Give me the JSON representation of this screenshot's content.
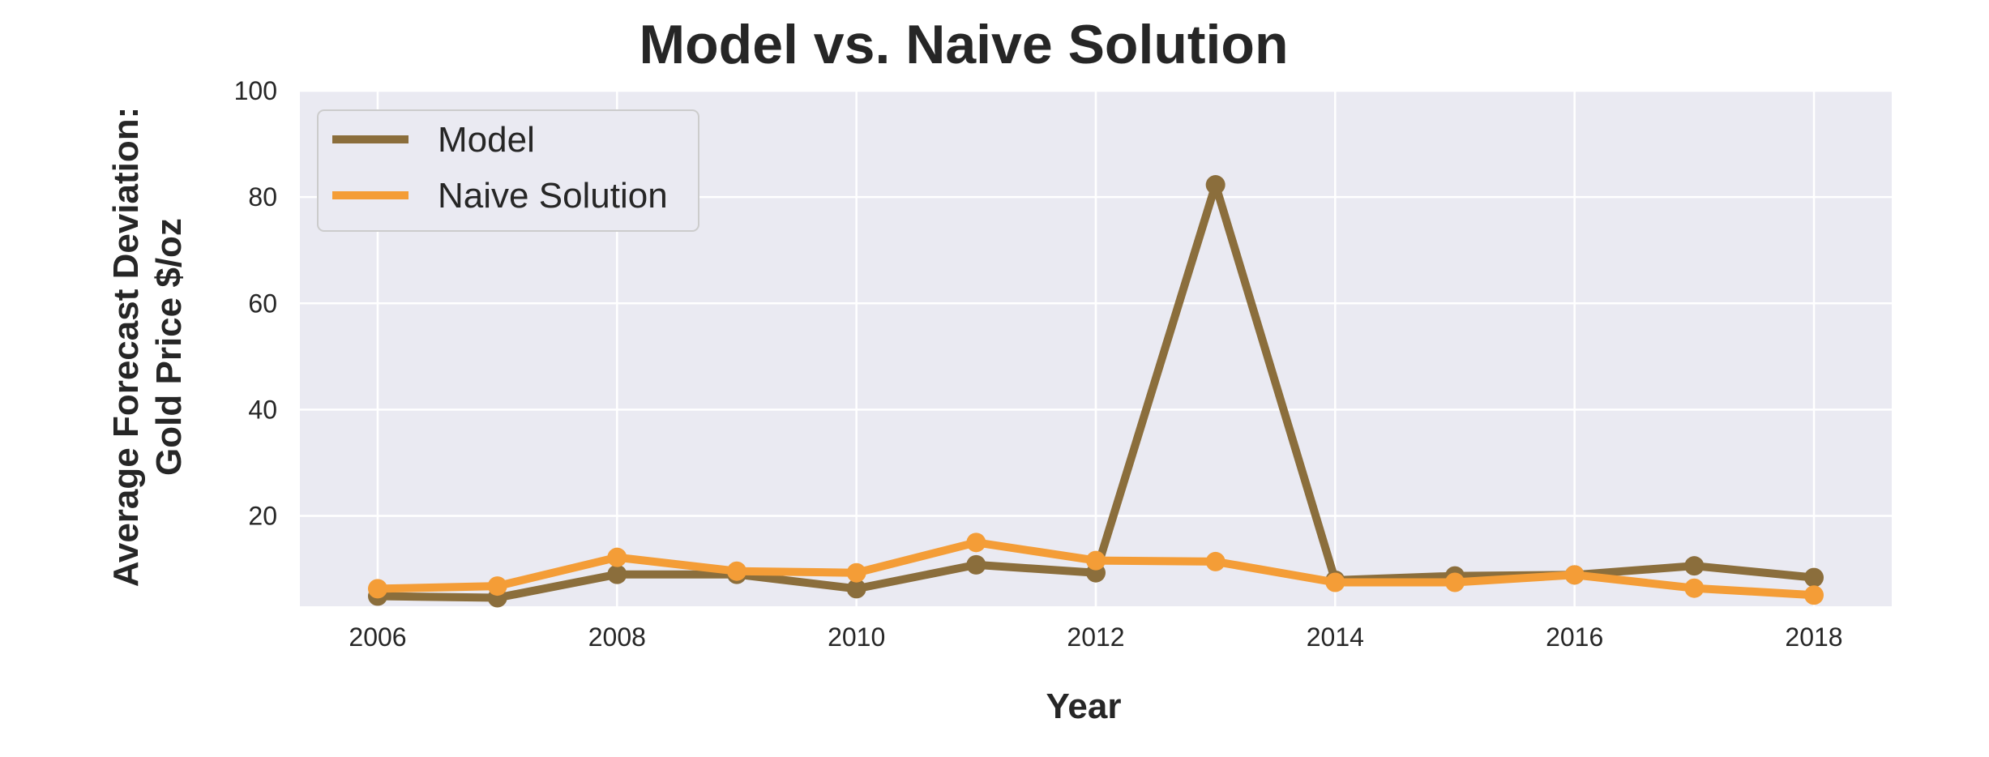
{
  "chart_data": {
    "type": "line",
    "title": "Model vs. Naive Solution",
    "xlabel": "Year",
    "ylabel_lines": [
      "Average Forecast Deviation:",
      "Gold Price $/oz"
    ],
    "x": [
      2006,
      2007,
      2008,
      2009,
      2010,
      2011,
      2012,
      2013,
      2014,
      2015,
      2016,
      2017,
      2018
    ],
    "xlim": [
      2005.35,
      2018.65
    ],
    "ylim": [
      3,
      100
    ],
    "xticks": [
      2006,
      2008,
      2010,
      2012,
      2014,
      2016,
      2018
    ],
    "yticks": [
      20,
      40,
      60,
      80,
      100
    ],
    "grid": true,
    "legend_position": "top-left",
    "series": [
      {
        "name": "Model",
        "color": "#8b6e3c",
        "values": [
          4.9,
          4.6,
          9.0,
          9.0,
          6.3,
          10.8,
          9.3,
          82.3,
          7.9,
          8.7,
          8.9,
          10.6,
          8.4
        ]
      },
      {
        "name": "Naive Solution",
        "color": "#f49d37",
        "values": [
          6.3,
          6.8,
          12.2,
          9.6,
          9.3,
          15.0,
          11.6,
          11.4,
          7.5,
          7.5,
          8.9,
          6.4,
          5.1
        ]
      }
    ],
    "plot_background": "#eaeaf2",
    "grid_color": "#ffffff"
  }
}
